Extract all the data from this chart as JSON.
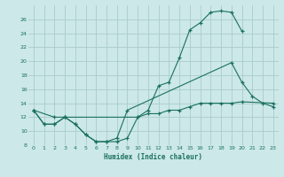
{
  "xlabel": "Humidex (Indice chaleur)",
  "bg_color": "#cce8e8",
  "grid_color": "#aacccc",
  "line_color": "#1a7060",
  "xlim": [
    -0.5,
    23.5
  ],
  "ylim": [
    8,
    28
  ],
  "xticks": [
    0,
    1,
    2,
    3,
    4,
    5,
    6,
    7,
    8,
    9,
    10,
    11,
    12,
    13,
    14,
    15,
    16,
    17,
    18,
    19,
    20,
    21,
    22,
    23
  ],
  "yticks": [
    8,
    10,
    12,
    14,
    16,
    18,
    20,
    22,
    24,
    26
  ],
  "line1_x": [
    0,
    1,
    2,
    3,
    4,
    5,
    6,
    7,
    8,
    9,
    10,
    11,
    12,
    13,
    14,
    15,
    16,
    17,
    18,
    19,
    20
  ],
  "line1_y": [
    13,
    11,
    11,
    12,
    11,
    9.5,
    8.5,
    8.5,
    8.5,
    9,
    12,
    13,
    16.5,
    17,
    20.5,
    24.5,
    25.5,
    27,
    27.2,
    27,
    24.3
  ],
  "line2_x": [
    0,
    1,
    2,
    3,
    4,
    5,
    6,
    7,
    8,
    9,
    19,
    20,
    21,
    22,
    23
  ],
  "line2_y": [
    13,
    11,
    11,
    12,
    11,
    9.5,
    8.5,
    8.5,
    9,
    13,
    19.8,
    17,
    15,
    14,
    13.5
  ],
  "line3_x": [
    0,
    2,
    3,
    10,
    11,
    12,
    13,
    14,
    15,
    16,
    17,
    18,
    19,
    20,
    23
  ],
  "line3_y": [
    13,
    12,
    12,
    12,
    12.5,
    12.5,
    13,
    13,
    13.5,
    14,
    14,
    14,
    14,
    14.2,
    14
  ]
}
